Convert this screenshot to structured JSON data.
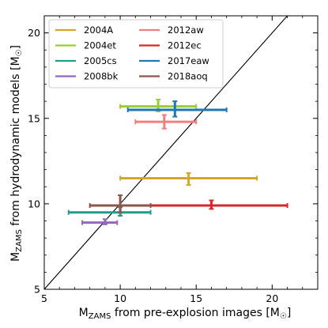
{
  "chart_data": {
    "type": "scatter",
    "xlabel": {
      "main": "M",
      "sub": "ZAMS",
      "rest": " from pre-explosion images [M",
      "sun": "☉",
      "close": "]"
    },
    "ylabel": {
      "main": "M",
      "sub": "ZAMS",
      "rest": " from hydrodynamic models [M",
      "sun": "☉",
      "close": "]"
    },
    "xlim": [
      5,
      23
    ],
    "ylim": [
      5,
      21
    ],
    "xticks": [
      5,
      10,
      15,
      20
    ],
    "yticks": [
      5,
      10,
      15,
      20
    ],
    "legend_position": "top-left",
    "reference_line": "y = x",
    "series": [
      {
        "name": "2004A",
        "color": "#d4a62a",
        "x": 14.5,
        "y": 11.5,
        "xerr": [
          10,
          19
        ],
        "yerr": [
          11.1,
          11.8
        ]
      },
      {
        "name": "2004et",
        "color": "#9acd32",
        "x": 12.5,
        "y": 15.7,
        "xerr": [
          10,
          15
        ],
        "yerr": [
          15.4,
          16.1
        ]
      },
      {
        "name": "2005cs",
        "color": "#1f9e89",
        "x": 10.0,
        "y": 9.5,
        "xerr": [
          6.6,
          12
        ],
        "yerr": [
          9.3,
          9.8
        ]
      },
      {
        "name": "2008bk",
        "color": "#9467bd",
        "x": 9.0,
        "y": 8.9,
        "xerr": [
          7.5,
          9.8
        ],
        "yerr": [
          8.8,
          9.1
        ]
      },
      {
        "name": "2012aw",
        "color": "#f08080",
        "x": 12.9,
        "y": 14.8,
        "xerr": [
          11,
          15
        ],
        "yerr": [
          14.4,
          15.2
        ]
      },
      {
        "name": "2012ec",
        "color": "#d62728",
        "x": 16.0,
        "y": 9.9,
        "xerr": [
          10,
          21
        ],
        "yerr": [
          9.7,
          10.2
        ]
      },
      {
        "name": "2017eaw",
        "color": "#1f77b4",
        "x": 13.6,
        "y": 15.5,
        "xerr": [
          10.5,
          17
        ],
        "yerr": [
          15.1,
          16.0
        ]
      },
      {
        "name": "2018aoq",
        "color": "#8c564b",
        "x": 10.0,
        "y": 9.9,
        "xerr": [
          8,
          12
        ],
        "yerr": [
          9.5,
          10.5
        ]
      }
    ]
  }
}
